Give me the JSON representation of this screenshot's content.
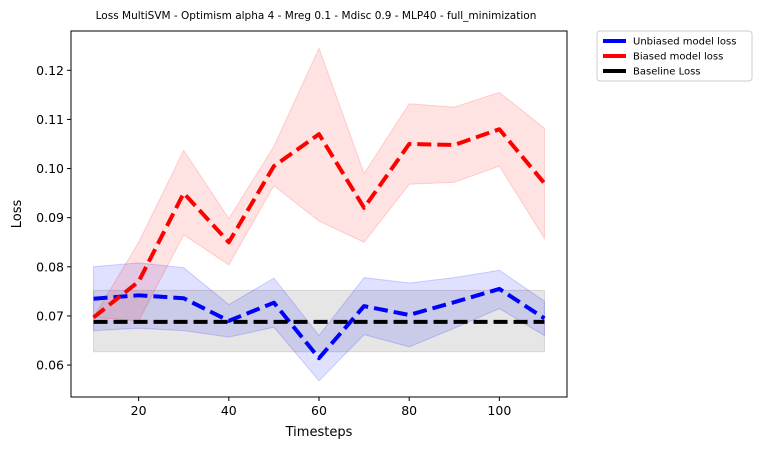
{
  "chart_data": {
    "type": "line",
    "title": "Loss MultiSVM - Optimism alpha 4 - Mreg 0.1 - Mdisc 0.9 - MLP40 - full_minimization",
    "xlabel": "Timesteps",
    "ylabel": "Loss",
    "xlim": [
      5,
      115
    ],
    "ylim": [
      0.0535,
      0.128
    ],
    "xticks": [
      20,
      40,
      60,
      80,
      100
    ],
    "xtick_labels": [
      "20",
      "40",
      "60",
      "80",
      "100"
    ],
    "yticks": [
      0.06,
      0.07,
      0.08,
      0.09,
      0.1,
      0.11,
      0.12
    ],
    "ytick_labels": [
      "0.06",
      "0.07",
      "0.08",
      "0.09",
      "0.10",
      "0.11",
      "0.12"
    ],
    "grid": false,
    "legend_position": "outside-top-right",
    "x": [
      10,
      20,
      30,
      40,
      50,
      60,
      70,
      80,
      90,
      100,
      110
    ],
    "series": [
      {
        "name": "Unbiased model loss",
        "color": "#0000ff",
        "band_color": "#0000ff",
        "values": [
          0.0735,
          0.0742,
          0.0736,
          0.069,
          0.0727,
          0.0614,
          0.072,
          0.0702,
          0.0728,
          0.0755,
          0.0695
        ],
        "lower": [
          0.067,
          0.0675,
          0.067,
          0.0657,
          0.0677,
          0.0568,
          0.0662,
          0.0637,
          0.0675,
          0.0715,
          0.066
        ],
        "upper": [
          0.08,
          0.0808,
          0.0798,
          0.0723,
          0.0777,
          0.066,
          0.0778,
          0.0767,
          0.0778,
          0.0793,
          0.073
        ]
      },
      {
        "name": "Biased model loss",
        "color": "#ff0000",
        "band_color": "#ff0000",
        "values": [
          0.0697,
          0.077,
          0.095,
          0.085,
          0.1005,
          0.107,
          0.092,
          0.105,
          0.1048,
          0.108,
          0.097
        ],
        "lower": [
          0.0697,
          0.069,
          0.0865,
          0.0804,
          0.0965,
          0.0893,
          0.085,
          0.0968,
          0.0972,
          0.1005,
          0.0858
        ],
        "upper": [
          0.0697,
          0.085,
          0.1037,
          0.0898,
          0.1045,
          0.1245,
          0.099,
          0.1132,
          0.1125,
          0.1155,
          0.1082
        ]
      },
      {
        "name": "Baseline Loss",
        "color": "#000000",
        "band_color": "#808080",
        "values": [
          0.0688,
          0.0688,
          0.0688,
          0.0688,
          0.0688,
          0.0688,
          0.0688,
          0.0688,
          0.0688,
          0.0688,
          0.0688
        ],
        "lower": [
          0.0627,
          0.0627,
          0.0627,
          0.0627,
          0.0627,
          0.0627,
          0.0627,
          0.0627,
          0.0627,
          0.0627,
          0.0627
        ],
        "upper": [
          0.0752,
          0.0752,
          0.0752,
          0.0752,
          0.0752,
          0.0752,
          0.0752,
          0.0752,
          0.0752,
          0.0752,
          0.0752
        ]
      }
    ]
  }
}
